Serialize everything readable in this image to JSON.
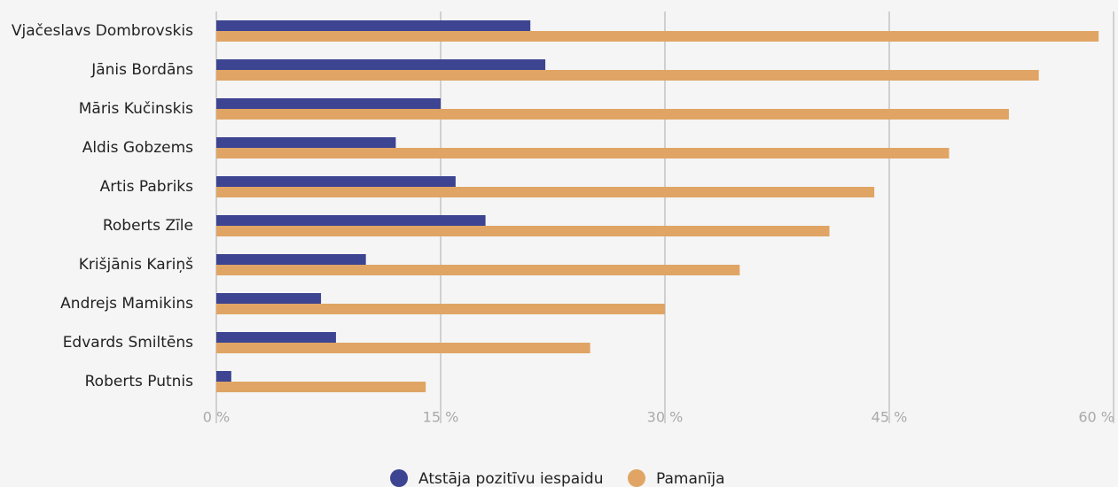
{
  "chart_data": {
    "type": "barh",
    "categories": [
      "Vjačeslavs Dombrovskis",
      "Jānis Bordāns",
      "Māris Kučinskis",
      "Aldis Gobzems",
      "Artis Pabriks",
      "Roberts Zīle",
      "Krišjānis Kariņš",
      "Andrejs Mamikins",
      "Edvards Smiltēns",
      "Roberts Putnis"
    ],
    "series": [
      {
        "name": "Atstāja pozitīvu iespaidu",
        "color": "#3d4491",
        "values": [
          21,
          22,
          15,
          12,
          16,
          18,
          10,
          7,
          8,
          1
        ]
      },
      {
        "name": "Pamanīja",
        "color": "#e0a565",
        "values": [
          59,
          55,
          53,
          49,
          44,
          41,
          35,
          30,
          25,
          14
        ]
      }
    ],
    "xlim": [
      0,
      60
    ],
    "xticks": [
      {
        "value": 0,
        "label": "0 %"
      },
      {
        "value": 15,
        "label": "15 %"
      },
      {
        "value": 30,
        "label": "30 %"
      },
      {
        "value": 45,
        "label": "45 %"
      },
      {
        "value": 60,
        "label": "60 %"
      }
    ],
    "grid": true,
    "legend": "bottom"
  }
}
